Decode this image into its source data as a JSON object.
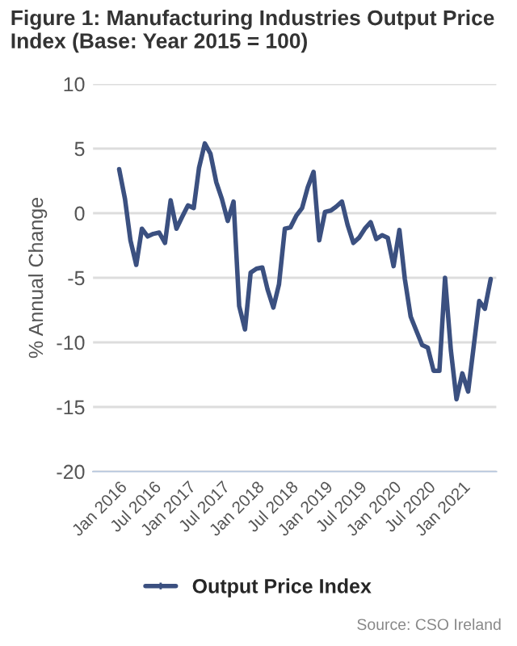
{
  "chart_data": {
    "type": "line",
    "title": "Figure 1: Manufacturing Industries Output Price Index (Base: Year 2015 = 100)",
    "ylabel": "% Annual Change",
    "annotations": [
      "Source: CSO Ireland"
    ],
    "x": [
      "2016-01",
      "2016-02",
      "2016-03",
      "2016-04",
      "2016-05",
      "2016-06",
      "2016-07",
      "2016-08",
      "2016-09",
      "2016-10",
      "2016-11",
      "2016-12",
      "2017-01",
      "2017-02",
      "2017-03",
      "2017-04",
      "2017-05",
      "2017-06",
      "2017-07",
      "2017-08",
      "2017-09",
      "2017-10",
      "2017-11",
      "2017-12",
      "2018-01",
      "2018-02",
      "2018-03",
      "2018-04",
      "2018-05",
      "2018-06",
      "2018-07",
      "2018-08",
      "2018-09",
      "2018-10",
      "2018-11",
      "2018-12",
      "2019-01",
      "2019-02",
      "2019-03",
      "2019-04",
      "2019-05",
      "2019-06",
      "2019-07",
      "2019-08",
      "2019-09",
      "2019-10",
      "2019-11",
      "2019-12",
      "2020-01",
      "2020-02",
      "2020-03",
      "2020-04",
      "2020-05",
      "2020-06",
      "2020-07",
      "2020-08",
      "2020-09",
      "2020-10",
      "2020-11",
      "2020-12",
      "2021-01",
      "2021-02",
      "2021-03",
      "2021-04",
      "2021-05",
      "2021-06"
    ],
    "series": [
      {
        "name": "Output Price Index",
        "color": "#3b5080",
        "values": [
          3.4,
          1.1,
          -2.1,
          -4.0,
          -1.2,
          -1.8,
          -1.6,
          -1.5,
          -2.3,
          1.0,
          -1.2,
          -0.3,
          0.6,
          0.4,
          3.5,
          5.4,
          4.6,
          2.4,
          1.1,
          -0.6,
          0.9,
          -7.2,
          -9.0,
          -4.6,
          -4.3,
          -4.2,
          -5.9,
          -7.3,
          -5.5,
          -1.2,
          -1.1,
          -0.2,
          0.4,
          2.0,
          3.2,
          -2.1,
          0.1,
          0.2,
          0.5,
          0.9,
          -0.9,
          -2.3,
          -1.9,
          -1.2,
          -0.7,
          -2.0,
          -1.7,
          -1.9,
          -4.1,
          -1.3,
          -5.1,
          -8.0,
          -9.1,
          -10.2,
          -10.4,
          -12.2,
          -12.2,
          -5.0,
          -10.6,
          -14.4,
          -12.4,
          -13.8,
          -10.5,
          -6.8,
          -7.4,
          -5.1
        ]
      }
    ],
    "ylim": [
      -20,
      10
    ],
    "yticks": [
      -20,
      -15,
      -10,
      -5,
      0,
      5,
      10
    ],
    "xlim": [
      "2015-08-15",
      "2021-07-01"
    ],
    "xticks": [
      {
        "value": "2016-01",
        "label": "Jan 2016"
      },
      {
        "value": "2016-07",
        "label": "Jul 2016"
      },
      {
        "value": "2017-01",
        "label": "Jan 2017"
      },
      {
        "value": "2017-07",
        "label": "Jul 2017"
      },
      {
        "value": "2018-01",
        "label": "Jan 2018"
      },
      {
        "value": "2018-07",
        "label": "Jul 2018"
      },
      {
        "value": "2019-01",
        "label": "Jan 2019"
      },
      {
        "value": "2019-07",
        "label": "Jul 2019"
      },
      {
        "value": "2020-01",
        "label": "Jan 2020"
      },
      {
        "value": "2020-07",
        "label": "Jul 2020"
      },
      {
        "value": "2021-01",
        "label": "Jan 2021"
      }
    ],
    "grid": "y",
    "legend": "bottom",
    "marker": "none",
    "line_style": "solid"
  }
}
